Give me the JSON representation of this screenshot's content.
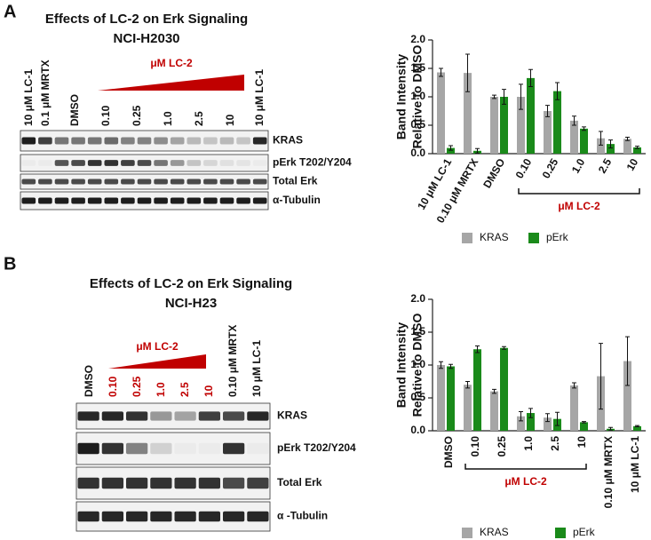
{
  "panel_labels": [
    "A",
    "B"
  ],
  "blots": [
    {
      "title": [
        "Effects of LC-2 on Erk Signaling",
        "NCI-H2030"
      ],
      "group_label": "μM LC-2",
      "lanes": [
        "10 μM LC-1",
        "0.1 μM MRTX",
        "DMSO",
        "0.10",
        "0.25",
        "1.0",
        "2.5",
        "10",
        "10 μM LC-1"
      ],
      "rows": [
        "KRAS",
        "pErk T202/Y204",
        "Total Erk",
        "α-Tubulin"
      ]
    },
    {
      "title": [
        "Effects of LC-2 on Erk Signaling",
        "NCI-H23"
      ],
      "group_label": "μM LC-2",
      "lanes": [
        "DMSO",
        "0.10",
        "0.25",
        "1.0",
        "2.5",
        "10",
        "0.10 μM MRTX",
        "10 μM LC-1"
      ],
      "rows": [
        "KRAS",
        "pErk T202/Y204",
        "Total Erk",
        "α -Tubulin"
      ]
    }
  ],
  "chart_data": [
    {
      "type": "bar",
      "ylabel": [
        "Band Intensity",
        "Relative to  DMSO"
      ],
      "categories": [
        "10 μM LC-1",
        "0.10 μM MRTX",
        "DMSO",
        "0.10",
        "0.25",
        "1.0",
        "2.5",
        "10"
      ],
      "bracket_label": "μM LC-2",
      "series": [
        {
          "name": "KRAS",
          "color": "#a6a6a6",
          "values": [
            1.43,
            1.42,
            1.0,
            1.0,
            0.75,
            0.58,
            0.27,
            0.26
          ],
          "errors": [
            0.07,
            0.33,
            0.03,
            0.22,
            0.1,
            0.08,
            0.12,
            0.03
          ]
        },
        {
          "name": "pErk",
          "color": "#1a8a1a",
          "values": [
            0.1,
            0.05,
            1.0,
            1.33,
            1.1,
            0.44,
            0.17,
            0.11
          ],
          "errors": [
            0.04,
            0.04,
            0.13,
            0.15,
            0.15,
            0.03,
            0.07,
            0.02
          ]
        }
      ],
      "ylim": [
        0,
        2
      ],
      "yticks": [
        {
          "value": 0,
          "label": "0.0"
        },
        0.5,
        {
          "value": 1,
          "label": "1.0"
        },
        1.5,
        {
          "value": 2,
          "label": "2.0"
        }
      ]
    },
    {
      "type": "bar",
      "ylabel": [
        "Band Intensity",
        "Relative to  DMSO"
      ],
      "categories": [
        "DMSO",
        "0.10",
        "0.25",
        "1.0",
        "2.5",
        "10",
        "0.10 μM MRTX",
        "10 μM LC-1"
      ],
      "bracket_label": "μM LC-2",
      "series": [
        {
          "name": "KRAS",
          "color": "#a6a6a6",
          "values": [
            1.0,
            0.7,
            0.6,
            0.22,
            0.2,
            0.69,
            0.83,
            1.06
          ],
          "errors": [
            0.05,
            0.05,
            0.03,
            0.07,
            0.06,
            0.04,
            0.5,
            0.37
          ]
        },
        {
          "name": "pErk",
          "color": "#1a8a1a",
          "values": [
            0.98,
            1.24,
            1.26,
            0.27,
            0.18,
            0.13,
            0.03,
            0.07
          ],
          "errors": [
            0.03,
            0.05,
            0.02,
            0.07,
            0.1,
            0.01,
            0.02,
            0.01
          ]
        }
      ],
      "ylim": [
        0,
        2
      ],
      "yticks": [
        {
          "value": 0,
          "label": "0.0"
        },
        0.5,
        {
          "value": 1,
          "label": "1.0"
        },
        1.5,
        {
          "value": 2,
          "label": "2.0"
        }
      ]
    }
  ]
}
